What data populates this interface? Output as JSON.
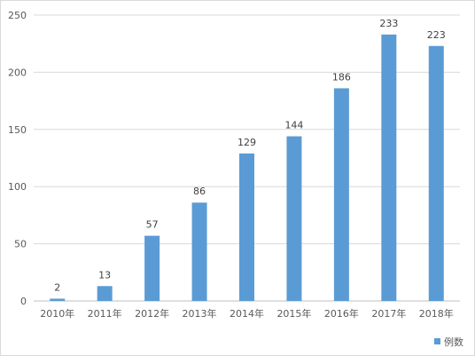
{
  "chart_data": {
    "type": "bar",
    "categories": [
      "2010年",
      "2011年",
      "2012年",
      "2013年",
      "2014年",
      "2015年",
      "2016年",
      "2017年",
      "2018年"
    ],
    "series": [
      {
        "name": "例数",
        "values": [
          2,
          13,
          57,
          86,
          129,
          144,
          186,
          233,
          223
        ],
        "color": "#5b9bd5"
      }
    ],
    "data_labels": [
      "2",
      "13",
      "57",
      "86",
      "129",
      "144",
      "186",
      "233",
      "223"
    ],
    "y_ticks": [
      "0",
      "50",
      "100",
      "150",
      "200",
      "250"
    ],
    "ylim": [
      0,
      250
    ],
    "grid": true,
    "legend": "bottom-right",
    "title": "",
    "xlabel": "",
    "ylabel": ""
  }
}
